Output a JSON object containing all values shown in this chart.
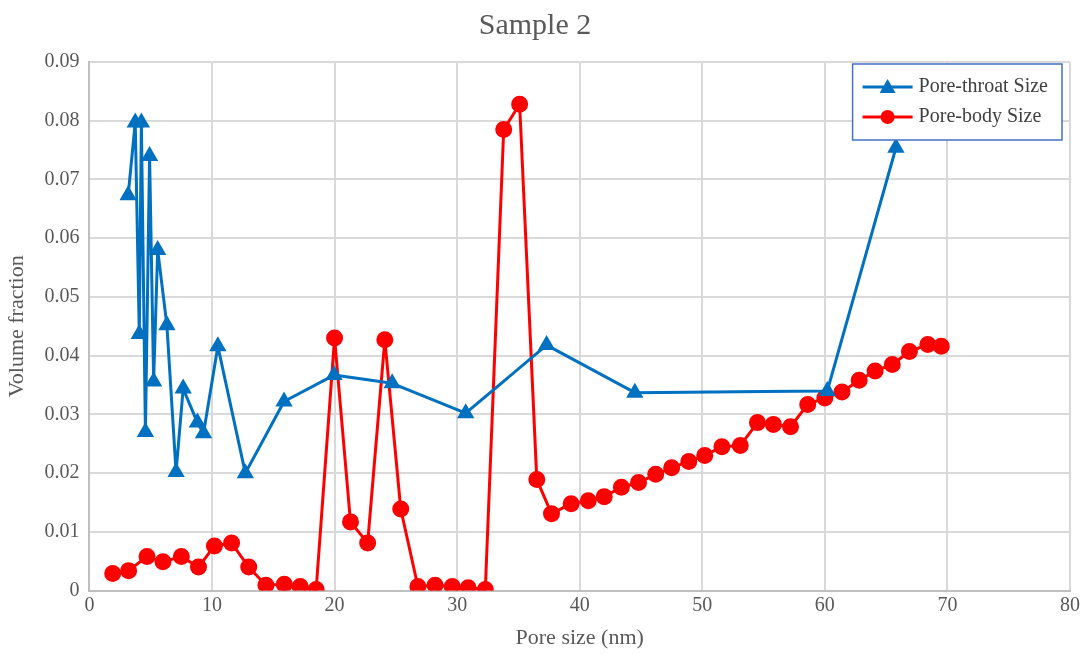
{
  "chart_data": {
    "type": "line",
    "title": "Sample 2",
    "xlabel": "Pore size (nm)",
    "ylabel": "Volume fraction",
    "xlim": [
      0,
      80
    ],
    "xticks": [
      0,
      10,
      20,
      30,
      40,
      50,
      60,
      70,
      80
    ],
    "ylim": [
      0,
      0.09
    ],
    "yticks": [
      0,
      0.01,
      0.02,
      0.03,
      0.04,
      0.05,
      0.06,
      0.07,
      0.08,
      0.09
    ],
    "grid": true,
    "legend": "top right",
    "series": [
      {
        "name": "Pore-throat Size",
        "color": "#0070c0",
        "marker": "triangle",
        "x": [
          3.16,
          3.74,
          4.07,
          4.24,
          4.57,
          4.91,
          5.24,
          5.57,
          6.32,
          7.07,
          7.65,
          8.81,
          9.31,
          10.48,
          12.72,
          15.88,
          19.96,
          24.7,
          30.7,
          37.3,
          44.5,
          60.2,
          65.8
        ],
        "values": [
          0.0673,
          0.0797,
          0.0437,
          0.0797,
          0.027,
          0.074,
          0.0356,
          0.058,
          0.0452,
          0.0202,
          0.0344,
          0.0286,
          0.0268,
          0.0416,
          0.02,
          0.0322,
          0.0367,
          0.0353,
          0.0302,
          0.0418,
          0.0337,
          0.034,
          0.0754
        ]
      },
      {
        "name": "Pore-body Size",
        "color": "#ff0000",
        "marker": "circle",
        "x": [
          1.9,
          3.2,
          4.7,
          6.0,
          7.5,
          8.9,
          10.2,
          11.6,
          13.0,
          14.4,
          15.9,
          17.2,
          18.5,
          20.0,
          21.3,
          22.7,
          24.1,
          25.4,
          26.8,
          28.2,
          29.6,
          30.9,
          32.3,
          33.8,
          35.1,
          36.5,
          37.7,
          39.3,
          40.7,
          42.0,
          43.4,
          44.8,
          46.2,
          47.5,
          48.9,
          50.2,
          51.6,
          53.1,
          54.5,
          55.8,
          57.2,
          58.6,
          60.0,
          61.4,
          62.8,
          64.1,
          65.5,
          66.9,
          68.4,
          69.5
        ],
        "values": [
          0.0029,
          0.0034,
          0.0058,
          0.0049,
          0.0058,
          0.004,
          0.0076,
          0.0081,
          0.004,
          0.0009,
          0.0011,
          0.0007,
          0.0002,
          0.043,
          0.0117,
          0.0081,
          0.0427,
          0.0139,
          0.0007,
          0.0009,
          0.0007,
          0.0005,
          0.0002,
          0.0785,
          0.0828,
          0.0189,
          0.0131,
          0.0148,
          0.0153,
          0.016,
          0.0176,
          0.0184,
          0.0198,
          0.0209,
          0.022,
          0.023,
          0.0245,
          0.0247,
          0.0286,
          0.0283,
          0.0279,
          0.0317,
          0.0328,
          0.0338,
          0.0358,
          0.0374,
          0.0385,
          0.0407,
          0.0419,
          0.0416
        ]
      }
    ]
  }
}
